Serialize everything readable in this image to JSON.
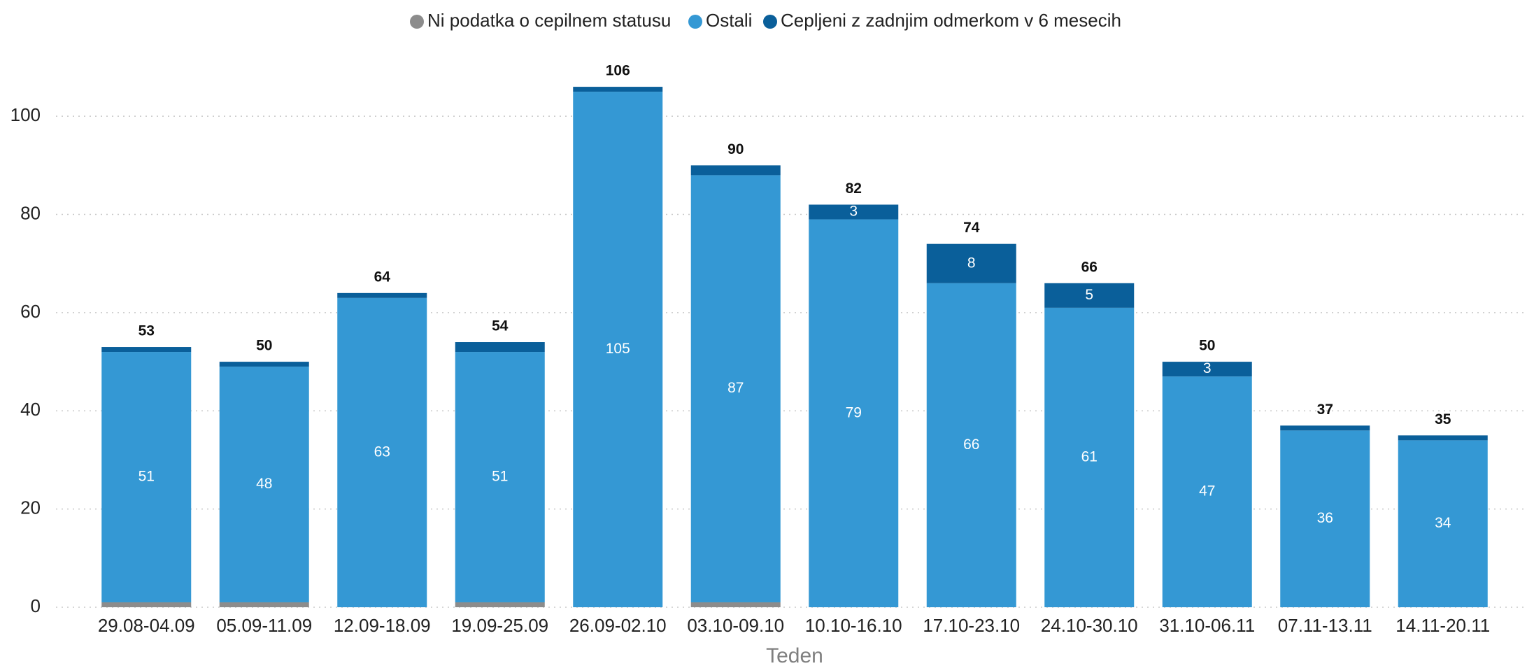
{
  "chart_data": {
    "type": "stacked_bar",
    "x_label": "Teden",
    "categories": [
      "29.08-04.09",
      "05.09-11.09",
      "12.09-18.09",
      "19.09-25.09",
      "26.09-02.10",
      "03.10-09.10",
      "10.10-16.10",
      "17.10-23.10",
      "24.10-30.10",
      "31.10-06.11",
      "07.11-13.11",
      "14.11-20.11"
    ],
    "series": [
      {
        "name": "Ni podatka o cepilnem statusu",
        "color": "#8c8c8c",
        "values": [
          1,
          1,
          0,
          1,
          0,
          1,
          0,
          0,
          0,
          0,
          0,
          0
        ],
        "value_labels": [
          null,
          null,
          null,
          null,
          null,
          null,
          null,
          null,
          null,
          null,
          null,
          null
        ]
      },
      {
        "name": "Ostali",
        "color": "#3498d4",
        "values": [
          51,
          48,
          63,
          51,
          105,
          87,
          79,
          66,
          61,
          47,
          36,
          34
        ],
        "value_labels": [
          "51",
          "48",
          "63",
          "51",
          "105",
          "87",
          "79",
          "66",
          "61",
          "47",
          "36",
          "34"
        ]
      },
      {
        "name": "Cepljeni z zadnjim odmerkom v 6 mesecih",
        "color": "#0a5f9a",
        "values": [
          1,
          1,
          1,
          2,
          1,
          2,
          3,
          8,
          5,
          3,
          1,
          1
        ],
        "value_labels": [
          null,
          null,
          null,
          null,
          null,
          null,
          "3",
          "8",
          "5",
          "3",
          null,
          null
        ]
      }
    ],
    "totals": [
      53,
      50,
      64,
      54,
      106,
      90,
      82,
      74,
      66,
      50,
      37,
      35
    ],
    "ylim": [
      0,
      110
    ],
    "yticks": [
      0,
      20,
      40,
      60,
      80,
      100
    ],
    "grid": true,
    "legend": "top"
  }
}
